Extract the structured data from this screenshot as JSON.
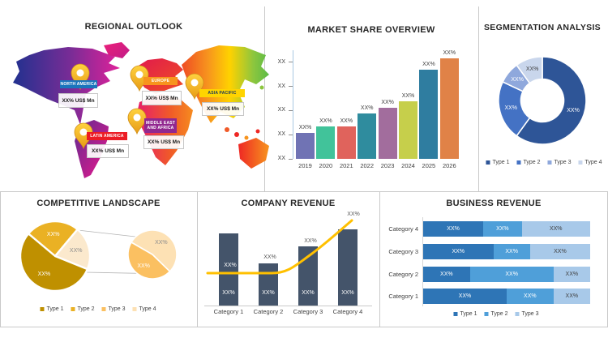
{
  "panels": {
    "regional": {
      "title": "REGIONAL OUTLOOK",
      "regions": [
        {
          "name": "NORTH AMERICA",
          "value": "XX% US$ Mn",
          "bar_color": "#1b75bc",
          "text_color": "#ffffff"
        },
        {
          "name": "EUROPE",
          "value": "XX% US$ Mn",
          "bar_color": "#f7941d",
          "text_color": "#ffffff"
        },
        {
          "name": "ASIA PACIFIC",
          "value": "XX% US$ Mn",
          "bar_color": "#ffd400",
          "text_color": "#17365d"
        },
        {
          "name": "MIDDLE EAST AND AFRICA",
          "value": "XX% US$ Mn",
          "bar_color": "#91278f",
          "text_color": "#ffffff"
        },
        {
          "name": "LATIN AMERICA",
          "value": "XX% US$ Mn",
          "bar_color": "#ec1c24",
          "text_color": "#ffffff"
        }
      ]
    },
    "market_share": {
      "title": "MARKET SHARE OVERVIEW"
    },
    "segmentation": {
      "title": "SEGMENTATION ANALYSIS"
    },
    "competitive": {
      "title": "COMPETITIVE LANDSCAPE"
    },
    "company_revenue": {
      "title": "COMPANY REVENUE"
    },
    "business_revenue": {
      "title": "BUSINESS REVENUE"
    }
  },
  "chart_data": [
    {
      "id": "market_share",
      "type": "bar",
      "title": "MARKET SHARE OVERVIEW",
      "categories": [
        "2019",
        "2020",
        "2021",
        "2022",
        "2023",
        "2024",
        "2025",
        "2026"
      ],
      "bar_labels": [
        "XX%",
        "XX%",
        "XX%",
        "XX%",
        "XX%",
        "XX%",
        "XX%",
        "XX%"
      ],
      "relative_values": [
        0.26,
        0.32,
        0.32,
        0.45,
        0.51,
        0.57,
        0.89,
        1.0
      ],
      "bar_colors": [
        "#7073b4",
        "#41c39a",
        "#e0635c",
        "#2f8c9e",
        "#a26d9d",
        "#c6cf4b",
        "#2f7da0",
        "#e08247"
      ],
      "y_ticks": [
        "XX",
        "XX",
        "XX",
        "XX",
        "XX"
      ],
      "xlabel": "",
      "ylabel": "",
      "grid": false,
      "legend_position": "none"
    },
    {
      "id": "segmentation",
      "type": "pie",
      "title": "SEGMENTATION ANALYSIS",
      "donut": true,
      "segments": [
        {
          "label": "Type 1",
          "value": 60,
          "display": "XX%",
          "color": "#2e5597",
          "label_color": "#ffffff"
        },
        {
          "label": "Type 2",
          "value": 22,
          "display": "XX%",
          "color": "#4472c4",
          "label_color": "#ffffff"
        },
        {
          "label": "Type 3",
          "value": 8,
          "display": "XX%",
          "color": "#8fa8dc",
          "label_color": "#ffffff"
        },
        {
          "label": "Type 4",
          "value": 10,
          "display": "XX%",
          "color": "#c9d6ec",
          "label_color": "#404040"
        }
      ],
      "legend": [
        {
          "label": "Type 1",
          "color": "#2e5597"
        },
        {
          "label": "Type 2",
          "color": "#4472c4"
        },
        {
          "label": "Type 3",
          "color": "#8fa8dc"
        },
        {
          "label": "Type 4",
          "color": "#c9d6ec"
        }
      ],
      "legend_position": "bottom"
    },
    {
      "id": "competitive",
      "type": "pie",
      "title": "COMPETITIVE LANDSCAPE",
      "subtype": "pie-of-pie",
      "main_start_deg": -50,
      "main": [
        {
          "label": "Type 2",
          "value": 25,
          "display": "XX%",
          "color": "#eab124",
          "label_color": "#ffffff"
        },
        {
          "label": "Other",
          "value": 20,
          "display": "XX%",
          "color": "#fbe9cd",
          "label_color": "#8c8c8c"
        },
        {
          "label": "Type 1",
          "value": 55,
          "display": "XX%",
          "color": "#bf9000",
          "label_color": "#ffffff"
        }
      ],
      "secondary_start_deg": -60,
      "secondary": [
        {
          "label": "Type 4",
          "value": 54,
          "display": "XX%",
          "color": "#fde1b4",
          "label_color": "#8c8c8c"
        },
        {
          "label": "Type 3",
          "value": 46,
          "display": "XX%",
          "color": "#fbc061",
          "label_color": "#ffffff"
        }
      ],
      "legend": [
        {
          "label": "Type 1",
          "color": "#bf9000"
        },
        {
          "label": "Type 2",
          "color": "#eab124"
        },
        {
          "label": "Type 3",
          "color": "#fbc061"
        },
        {
          "label": "Type 4",
          "color": "#fde1b4"
        }
      ],
      "legend_position": "bottom"
    },
    {
      "id": "company_revenue",
      "type": "bar",
      "title": "COMPANY REVENUE",
      "subtype": "bar-with-line",
      "categories": [
        "Category 1",
        "Category 2",
        "Category 3",
        "Category 4"
      ],
      "bar_relative": [
        0.86,
        0.5,
        0.7,
        0.9
      ],
      "bar_labels": [
        "XX%",
        "XX%",
        "XX%",
        "XX%"
      ],
      "line_relative": [
        0.4,
        0.39,
        0.6,
        1.0
      ],
      "line_labels": [
        "XX%",
        "XX%",
        "XX%",
        "XX%"
      ],
      "bar_color": "#44546a",
      "line_color": "#ffc000",
      "legend_position": "none"
    },
    {
      "id": "business_revenue",
      "type": "bar",
      "title": "BUSINESS REVENUE",
      "subtype": "stacked-horizontal",
      "categories_top_to_bottom": [
        "Category 4",
        "Category 3",
        "Category 2",
        "Category 1"
      ],
      "series": [
        {
          "name": "Type 1",
          "color": "#2e75b6",
          "label_color": "#ffffff",
          "values_pct": [
            36,
            42,
            28,
            50
          ]
        },
        {
          "name": "Type 2",
          "color": "#4f9fd9",
          "label_color": "#ffffff",
          "values_pct": [
            23,
            22,
            50,
            28
          ]
        },
        {
          "name": "Type 3",
          "color": "#a8c9e9",
          "label_color": "#404040",
          "values_pct": [
            41,
            36,
            22,
            22
          ]
        }
      ],
      "cell_label": "XX%",
      "legend": [
        {
          "label": "Type 1",
          "color": "#2e75b6"
        },
        {
          "label": "Type 2",
          "color": "#4f9fd9"
        },
        {
          "label": "Type 3",
          "color": "#a8c9e9"
        }
      ],
      "legend_position": "bottom"
    }
  ]
}
